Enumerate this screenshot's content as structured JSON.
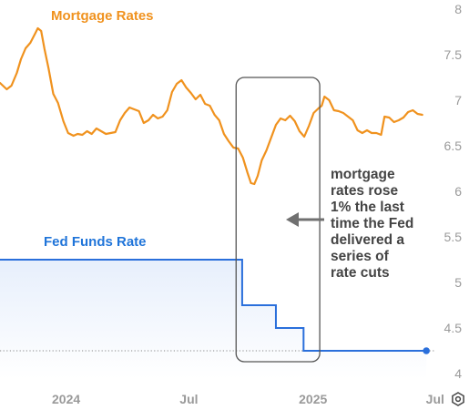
{
  "chart_data": {
    "type": "line",
    "title": "",
    "colors": {
      "mortgage": "#f0921e",
      "fed": "#2a6fdb",
      "fed_fill": "#e7effc",
      "box": "#555555",
      "arrow": "#707070",
      "axis_text": "#9a9a9a"
    },
    "y_axis": {
      "min": 4,
      "max": 8,
      "ticks": [
        "4",
        "4.5",
        "5",
        "5.5",
        "6",
        "6.5",
        "7",
        "7.5",
        "8"
      ],
      "position": "right"
    },
    "x_axis": {
      "range": [
        "2023-09-25",
        "2025-07-31"
      ],
      "ticks": [
        {
          "label": "2024",
          "date": "2024-01-01"
        },
        {
          "label": "Jul",
          "date": "2024-07-01"
        },
        {
          "label": "2025",
          "date": "2025-01-01"
        },
        {
          "label": "Jul",
          "date": "2025-07-01"
        }
      ]
    },
    "series": [
      {
        "name": "Mortgage Rates",
        "key": "mortgage",
        "points": [
          [
            "2023-09-25",
            7.19
          ],
          [
            "2023-10-05",
            7.12
          ],
          [
            "2023-10-12",
            7.16
          ],
          [
            "2023-10-20",
            7.3
          ],
          [
            "2023-10-26",
            7.45
          ],
          [
            "2023-11-02",
            7.57
          ],
          [
            "2023-11-09",
            7.63
          ],
          [
            "2023-11-16",
            7.73
          ],
          [
            "2023-11-20",
            7.79
          ],
          [
            "2023-11-25",
            7.76
          ],
          [
            "2023-11-30",
            7.56
          ],
          [
            "2023-12-06",
            7.35
          ],
          [
            "2023-12-13",
            7.07
          ],
          [
            "2023-12-20",
            6.97
          ],
          [
            "2023-12-28",
            6.77
          ],
          [
            "2024-01-04",
            6.64
          ],
          [
            "2024-01-12",
            6.61
          ],
          [
            "2024-01-18",
            6.63
          ],
          [
            "2024-01-25",
            6.62
          ],
          [
            "2024-02-01",
            6.66
          ],
          [
            "2024-02-08",
            6.63
          ],
          [
            "2024-02-15",
            6.69
          ],
          [
            "2024-02-22",
            6.66
          ],
          [
            "2024-02-29",
            6.63
          ],
          [
            "2024-03-07",
            6.64
          ],
          [
            "2024-03-14",
            6.65
          ],
          [
            "2024-03-21",
            6.78
          ],
          [
            "2024-03-28",
            6.86
          ],
          [
            "2024-04-04",
            6.92
          ],
          [
            "2024-04-11",
            6.9
          ],
          [
            "2024-04-18",
            6.88
          ],
          [
            "2024-04-25",
            6.75
          ],
          [
            "2024-05-02",
            6.78
          ],
          [
            "2024-05-09",
            6.84
          ],
          [
            "2024-05-16",
            6.8
          ],
          [
            "2024-05-23",
            6.82
          ],
          [
            "2024-05-30",
            6.89
          ],
          [
            "2024-06-06",
            7.09
          ],
          [
            "2024-06-13",
            7.18
          ],
          [
            "2024-06-20",
            7.22
          ],
          [
            "2024-06-27",
            7.14
          ],
          [
            "2024-07-04",
            7.08
          ],
          [
            "2024-07-11",
            7.01
          ],
          [
            "2024-07-18",
            7.06
          ],
          [
            "2024-07-25",
            6.96
          ],
          [
            "2024-08-01",
            6.94
          ],
          [
            "2024-08-08",
            6.84
          ],
          [
            "2024-08-15",
            6.78
          ],
          [
            "2024-08-22",
            6.63
          ],
          [
            "2024-08-29",
            6.55
          ],
          [
            "2024-09-05",
            6.48
          ],
          [
            "2024-09-12",
            6.47
          ],
          [
            "2024-09-19",
            6.37
          ],
          [
            "2024-09-26",
            6.2
          ],
          [
            "2024-10-01",
            6.09
          ],
          [
            "2024-10-06",
            6.08
          ],
          [
            "2024-10-11",
            6.17
          ],
          [
            "2024-10-17",
            6.34
          ],
          [
            "2024-10-24",
            6.45
          ],
          [
            "2024-10-31",
            6.59
          ],
          [
            "2024-11-07",
            6.73
          ],
          [
            "2024-11-14",
            6.8
          ],
          [
            "2024-11-21",
            6.78
          ],
          [
            "2024-11-28",
            6.83
          ],
          [
            "2024-12-05",
            6.77
          ],
          [
            "2024-12-12",
            6.66
          ],
          [
            "2024-12-19",
            6.6
          ],
          [
            "2024-12-26",
            6.72
          ],
          [
            "2025-01-02",
            6.86
          ],
          [
            "2025-01-09",
            6.91
          ],
          [
            "2025-01-14",
            6.94
          ],
          [
            "2025-01-18",
            7.04
          ],
          [
            "2025-01-25",
            7.0
          ],
          [
            "2025-02-01",
            6.89
          ],
          [
            "2025-02-08",
            6.88
          ],
          [
            "2025-02-15",
            6.86
          ],
          [
            "2025-02-22",
            6.82
          ],
          [
            "2025-03-01",
            6.78
          ],
          [
            "2025-03-08",
            6.67
          ],
          [
            "2025-03-15",
            6.64
          ],
          [
            "2025-03-22",
            6.67
          ],
          [
            "2025-03-29",
            6.64
          ],
          [
            "2025-04-05",
            6.64
          ],
          [
            "2025-04-12",
            6.62
          ],
          [
            "2025-04-17",
            6.82
          ],
          [
            "2025-04-24",
            6.81
          ],
          [
            "2025-05-01",
            6.76
          ],
          [
            "2025-05-08",
            6.78
          ],
          [
            "2025-05-15",
            6.81
          ],
          [
            "2025-05-22",
            6.87
          ],
          [
            "2025-05-29",
            6.89
          ],
          [
            "2025-06-05",
            6.85
          ],
          [
            "2025-06-12",
            6.84
          ]
        ]
      },
      {
        "name": "Fed Funds Rate",
        "key": "fed",
        "step": true,
        "points": [
          [
            "2023-09-25",
            5.25
          ],
          [
            "2024-09-18",
            4.75
          ],
          [
            "2024-11-07",
            4.5
          ],
          [
            "2024-12-18",
            4.25
          ],
          [
            "2025-06-18",
            4.25
          ]
        ],
        "end_marker": true
      }
    ],
    "baseline": {
      "value": 4.25,
      "style": "dotted"
    },
    "highlight_range": [
      "2024-09-09",
      "2025-01-11"
    ],
    "annotation_lines": [
      "mortgage",
      "rates rose",
      "1% the last",
      "time the Fed",
      "delivered a",
      "series of",
      "rate cuts"
    ]
  }
}
